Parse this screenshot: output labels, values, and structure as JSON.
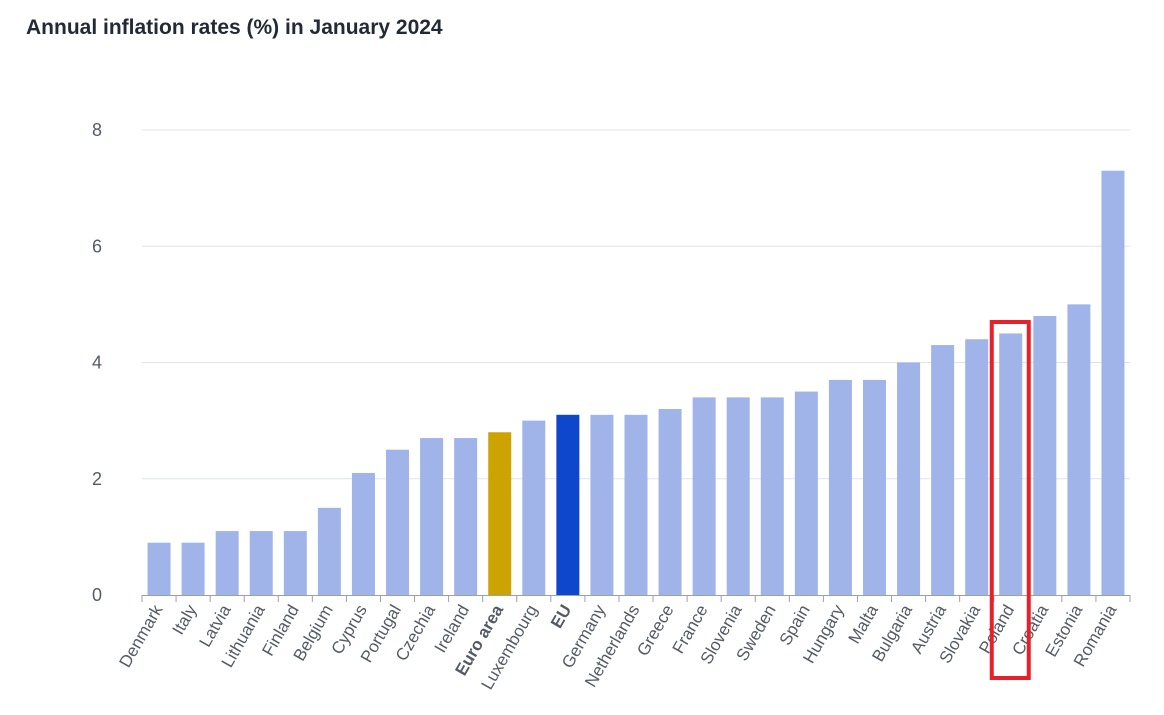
{
  "chart_data": {
    "type": "bar",
    "title": "Annual inflation rates (%) in January 2024",
    "categories": [
      "Denmark",
      "Italy",
      "Latvia",
      "Lithuania",
      "Finland",
      "Belgium",
      "Cyprus",
      "Portugal",
      "Czechia",
      "Ireland",
      "Euro area",
      "Luxembourg",
      "EU",
      "Germany",
      "Netherlands",
      "Greece",
      "France",
      "Slovenia",
      "Sweden",
      "Spain",
      "Hungary",
      "Malta",
      "Bulgaria",
      "Austria",
      "Slovakia",
      "Poland",
      "Croatia",
      "Estonia",
      "Romania"
    ],
    "values": [
      0.9,
      0.9,
      1.1,
      1.1,
      1.1,
      1.5,
      2.1,
      2.5,
      2.7,
      2.7,
      2.8,
      3.0,
      3.1,
      3.1,
      3.1,
      3.2,
      3.4,
      3.4,
      3.4,
      3.5,
      3.7,
      3.7,
      4.0,
      4.3,
      4.4,
      4.5,
      4.8,
      5.0,
      7.3
    ],
    "bold_categories": [
      "Euro area",
      "EU"
    ],
    "ylim": [
      0,
      8
    ],
    "yticks": [
      0,
      2,
      4,
      6,
      8
    ],
    "grid": true,
    "highlighted_category": "Poland",
    "colors": {
      "default": "#a0b4ea",
      "Euro area": "#cca300",
      "EU": "#0e47cb",
      "highlight_box": "#e8202a",
      "grid": "#dfe3ee",
      "axis": "#9aa0a8"
    }
  }
}
